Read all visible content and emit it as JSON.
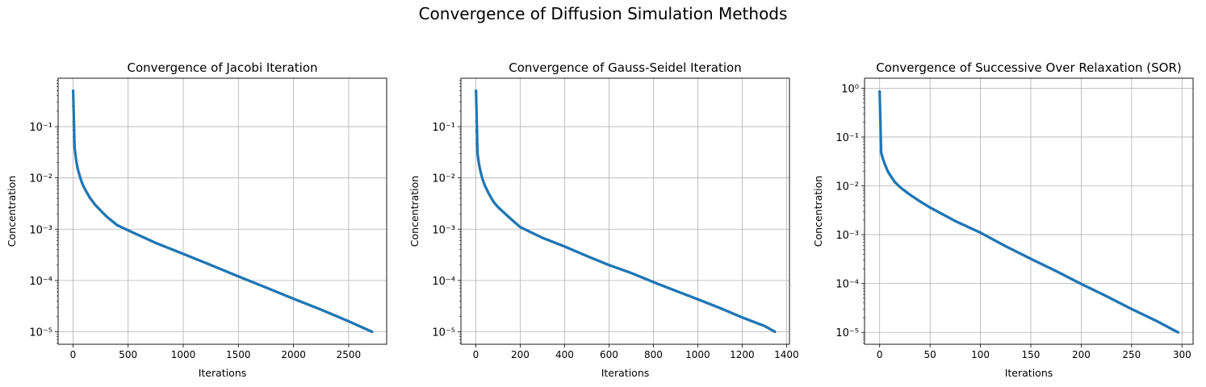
{
  "figure": {
    "suptitle": "Convergence of Diffusion Simulation Methods",
    "marker_color": "#1f77b4",
    "grid_color": "#b0b0b0"
  },
  "chart_data": [
    {
      "type": "scatter",
      "title": "Convergence of Jacobi Iteration",
      "xlabel": "Iterations",
      "ylabel": "Concentration",
      "yscale": "log",
      "grid": true,
      "xlim": [
        -135,
        2845
      ],
      "ylim": [
        5.7e-06,
        0.88
      ],
      "xticks": [
        0,
        500,
        1000,
        1500,
        2000,
        2500
      ],
      "xtick_labels": [
        "0",
        "500",
        "1000",
        "1500",
        "2000",
        "2500"
      ],
      "yticks": [
        1e-05,
        0.0001,
        0.001,
        0.01,
        0.1
      ],
      "ytick_labels": [
        "10⁻⁵",
        "10⁻⁴",
        "10⁻³",
        "10⁻²",
        "10⁻¹"
      ],
      "points": [
        [
          1,
          0.5
        ],
        [
          2,
          0.25
        ],
        [
          4,
          0.125
        ],
        [
          6,
          0.085
        ],
        [
          8,
          0.065
        ],
        [
          10,
          0.052
        ],
        [
          15,
          0.038
        ],
        [
          20,
          0.03
        ],
        [
          30,
          0.021
        ],
        [
          40,
          0.016
        ],
        [
          60,
          0.011
        ],
        [
          80,
          0.0082
        ],
        [
          100,
          0.0065
        ],
        [
          150,
          0.0042
        ],
        [
          200,
          0.003
        ],
        [
          300,
          0.0018
        ],
        [
          400,
          0.0012
        ],
        [
          500,
          0.00095
        ],
        [
          750,
          0.00054
        ],
        [
          1000,
          0.00033
        ],
        [
          1250,
          0.0002
        ],
        [
          1500,
          0.00012
        ],
        [
          1750,
          7.3e-05
        ],
        [
          2000,
          4.4e-05
        ],
        [
          2250,
          2.7e-05
        ],
        [
          2500,
          1.6e-05
        ],
        [
          2712,
          1e-05
        ]
      ]
    },
    {
      "type": "scatter",
      "title": "Convergence of Gauss-Seidel Iteration",
      "xlabel": "Iterations",
      "ylabel": "Concentration",
      "yscale": "log",
      "grid": true,
      "xlim": [
        -67,
        1413
      ],
      "ylim": [
        5.7e-06,
        0.88
      ],
      "xticks": [
        0,
        200,
        400,
        600,
        800,
        1000,
        1200,
        1400
      ],
      "xtick_labels": [
        "0",
        "200",
        "400",
        "600",
        "800",
        "1000",
        "1200",
        "1400"
      ],
      "yticks": [
        1e-05,
        0.0001,
        0.001,
        0.01,
        0.1
      ],
      "ytick_labels": [
        "10⁻⁵",
        "10⁻⁴",
        "10⁻³",
        "10⁻²",
        "10⁻¹"
      ],
      "points": [
        [
          1,
          0.5
        ],
        [
          2,
          0.125
        ],
        [
          3,
          0.078
        ],
        [
          4,
          0.055
        ],
        [
          5,
          0.043
        ],
        [
          7,
          0.032
        ],
        [
          10,
          0.024
        ],
        [
          15,
          0.018
        ],
        [
          20,
          0.014
        ],
        [
          30,
          0.0095
        ],
        [
          40,
          0.0072
        ],
        [
          60,
          0.0048
        ],
        [
          80,
          0.0034
        ],
        [
          100,
          0.0027
        ],
        [
          150,
          0.0017
        ],
        [
          200,
          0.0011
        ],
        [
          300,
          0.00068
        ],
        [
          400,
          0.00046
        ],
        [
          500,
          0.0003
        ],
        [
          600,
          0.0002
        ],
        [
          700,
          0.00014
        ],
        [
          800,
          9.3e-05
        ],
        [
          900,
          6.3e-05
        ],
        [
          1000,
          4.3e-05
        ],
        [
          1100,
          2.9e-05
        ],
        [
          1200,
          1.9e-05
        ],
        [
          1300,
          1.3e-05
        ],
        [
          1347,
          1e-05
        ]
      ]
    },
    {
      "type": "scatter",
      "title": "Convergence of Successive Over Relaxation (SOR)",
      "xlabel": "Iterations",
      "ylabel": "Concentration",
      "yscale": "log",
      "grid": true,
      "xlim": [
        -15,
        311
      ],
      "ylim": [
        5.7e-06,
        1.6
      ],
      "xticks": [
        0,
        50,
        100,
        150,
        200,
        250,
        300
      ],
      "xtick_labels": [
        "0",
        "50",
        "100",
        "150",
        "200",
        "250",
        "300"
      ],
      "yticks": [
        1e-05,
        0.0001,
        0.001,
        0.01,
        0.1,
        1
      ],
      "ytick_labels": [
        "10⁻⁵",
        "10⁻⁴",
        "10⁻³",
        "10⁻²",
        "10⁻¹",
        "10⁰"
      ],
      "points": [
        [
          0,
          0.85
        ],
        [
          1,
          0.052
        ],
        [
          2,
          0.044
        ],
        [
          3,
          0.037
        ],
        [
          5,
          0.028
        ],
        [
          8,
          0.02
        ],
        [
          10,
          0.017
        ],
        [
          15,
          0.012
        ],
        [
          20,
          0.0095
        ],
        [
          25,
          0.0079
        ],
        [
          30,
          0.0066
        ],
        [
          40,
          0.0048
        ],
        [
          50,
          0.0036
        ],
        [
          75,
          0.0019
        ],
        [
          100,
          0.0011
        ],
        [
          125,
          0.00058
        ],
        [
          150,
          0.00032
        ],
        [
          175,
          0.00018
        ],
        [
          200,
          9.8e-05
        ],
        [
          225,
          5.5e-05
        ],
        [
          250,
          3e-05
        ],
        [
          275,
          1.7e-05
        ],
        [
          296,
          1e-05
        ]
      ]
    }
  ]
}
